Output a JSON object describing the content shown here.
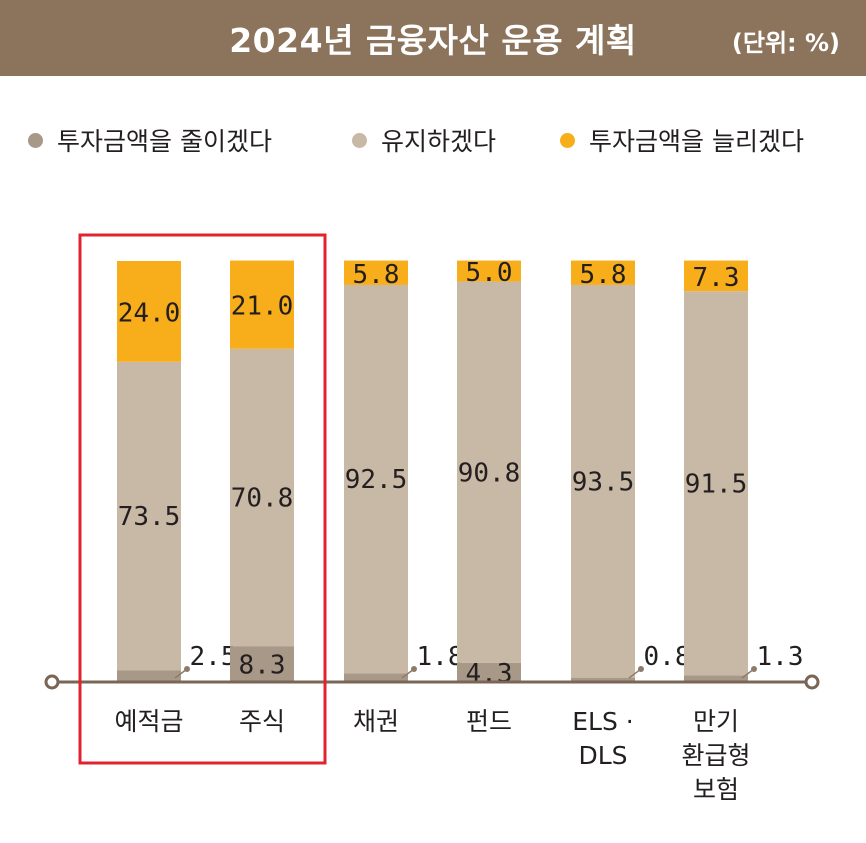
{
  "header": {
    "title": "2024년 금융자산 운용 계획",
    "unit": "(단위: %)"
  },
  "legend": [
    {
      "label": "투자금액을 줄이겠다",
      "color": "#a89887"
    },
    {
      "label": "유지하겠다",
      "color": "#c8b8a6"
    },
    {
      "label": "투자금액을 늘리겠다",
      "color": "#f8ad1a"
    }
  ],
  "colors": {
    "decrease": "#a89887",
    "maintain": "#c8b8a6",
    "increase": "#f8ad1a",
    "axis": "#7a6656",
    "highlight": "#e0242f"
  },
  "chart_data": {
    "type": "bar",
    "stacked": true,
    "categories": [
      [
        "예적금"
      ],
      [
        "주식"
      ],
      [
        "채권"
      ],
      [
        "펀드"
      ],
      [
        "ELS ·",
        "DLS"
      ],
      [
        "만기",
        "환급형",
        "보험"
      ]
    ],
    "series": [
      {
        "name": "투자금액을 줄이겠다",
        "values": [
          2.5,
          8.3,
          1.8,
          4.3,
          0.8,
          1.3
        ]
      },
      {
        "name": "유지하겠다",
        "values": [
          73.5,
          70.8,
          92.5,
          90.8,
          93.5,
          91.5
        ]
      },
      {
        "name": "투자금액을 늘리겠다",
        "values": [
          24.0,
          21.0,
          5.8,
          5.0,
          5.8,
          7.3
        ]
      }
    ],
    "value_labels": {
      "decrease": [
        "2.5",
        "8.3",
        "1.8",
        "4.3",
        "0.8",
        "1.3"
      ],
      "maintain": [
        "73.5",
        "70.8",
        "92.5",
        "90.8",
        "93.5",
        "91.5"
      ],
      "increase": [
        "24.0",
        "21.0",
        "5.8",
        "5.0",
        "5.8",
        "7.3"
      ]
    },
    "ylim": [
      0,
      100
    ],
    "grid": false,
    "legend_position": "top",
    "highlighted_categories": [
      "예적금",
      "주식"
    ]
  }
}
